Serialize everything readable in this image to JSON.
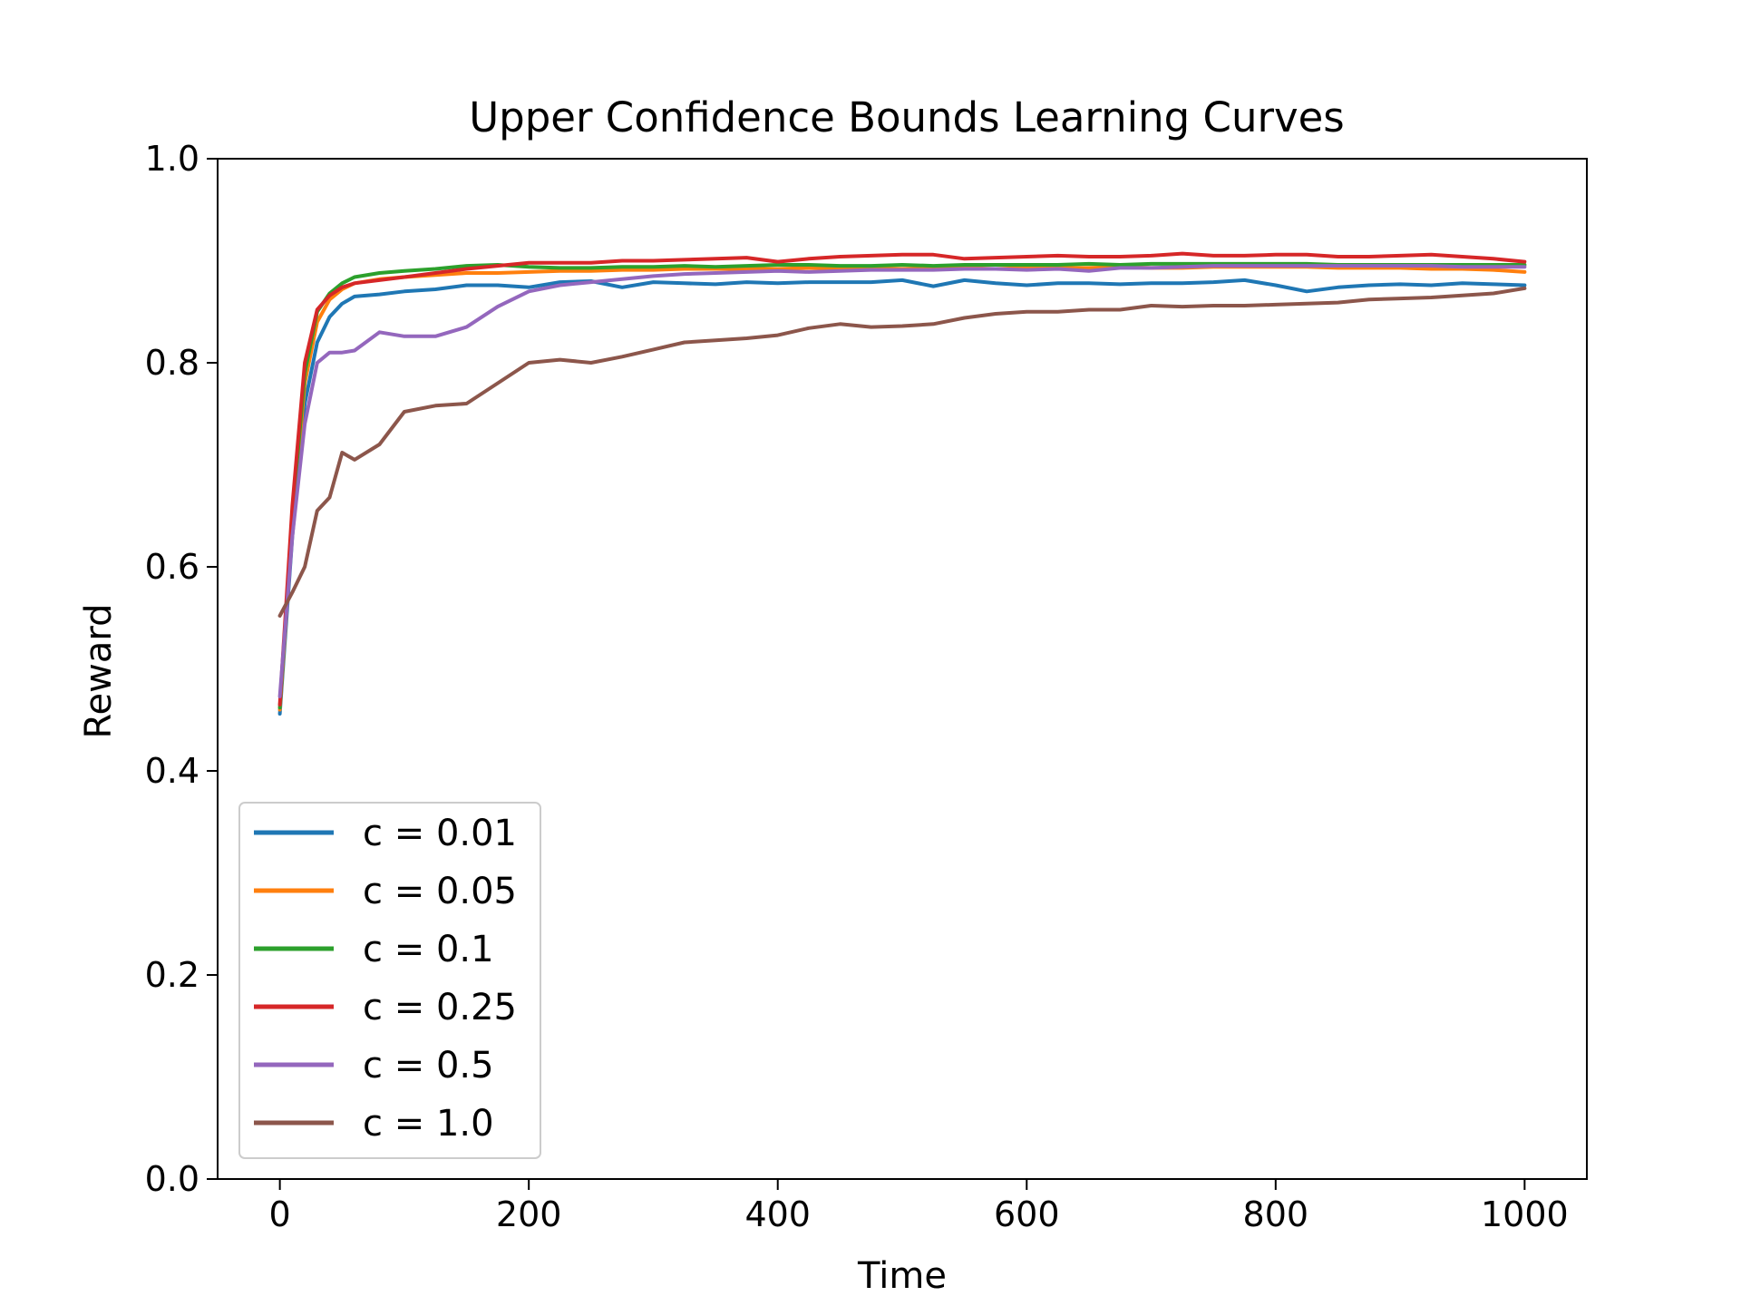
{
  "chart_data": {
    "type": "line",
    "title": "Upper Confidence Bounds Learning Curves",
    "xlabel": "Time",
    "ylabel": "Reward",
    "xlim": [
      -50,
      1050
    ],
    "ylim": [
      0.0,
      1.0
    ],
    "xticks": [
      "0",
      "200",
      "400",
      "600",
      "800",
      "1000"
    ],
    "yticks": [
      "0.0",
      "0.2",
      "0.4",
      "0.6",
      "0.8",
      "1.0"
    ],
    "grid": false,
    "legend_position": "lower left",
    "x": [
      0,
      10,
      20,
      30,
      40,
      50,
      60,
      80,
      100,
      125,
      150,
      175,
      200,
      225,
      250,
      275,
      300,
      325,
      350,
      375,
      400,
      425,
      450,
      475,
      500,
      525,
      550,
      575,
      600,
      625,
      650,
      675,
      700,
      725,
      750,
      775,
      800,
      825,
      850,
      875,
      900,
      925,
      950,
      975,
      1000
    ],
    "series": [
      {
        "name": "c = 0.01",
        "color": "#1f77b4",
        "values": [
          0.456,
          0.63,
          0.76,
          0.82,
          0.845,
          0.858,
          0.865,
          0.867,
          0.87,
          0.872,
          0.876,
          0.876,
          0.874,
          0.879,
          0.88,
          0.874,
          0.879,
          0.878,
          0.877,
          0.879,
          0.878,
          0.879,
          0.879,
          0.879,
          0.881,
          0.875,
          0.881,
          0.878,
          0.876,
          0.878,
          0.878,
          0.877,
          0.878,
          0.878,
          0.879,
          0.881,
          0.876,
          0.87,
          0.874,
          0.876,
          0.877,
          0.876,
          0.878,
          0.877,
          0.876
        ]
      },
      {
        "name": "c = 0.05",
        "color": "#ff7f0e",
        "values": [
          0.46,
          0.64,
          0.78,
          0.84,
          0.862,
          0.872,
          0.878,
          0.882,
          0.884,
          0.886,
          0.888,
          0.888,
          0.889,
          0.89,
          0.89,
          0.891,
          0.891,
          0.892,
          0.892,
          0.892,
          0.892,
          0.893,
          0.892,
          0.893,
          0.892,
          0.893,
          0.893,
          0.892,
          0.893,
          0.893,
          0.893,
          0.894,
          0.893,
          0.893,
          0.894,
          0.894,
          0.894,
          0.894,
          0.893,
          0.893,
          0.893,
          0.892,
          0.892,
          0.891,
          0.889
        ]
      },
      {
        "name": "c = 0.1",
        "color": "#2ca02c",
        "values": [
          0.462,
          0.65,
          0.79,
          0.85,
          0.868,
          0.878,
          0.884,
          0.888,
          0.89,
          0.892,
          0.895,
          0.896,
          0.894,
          0.893,
          0.893,
          0.894,
          0.894,
          0.895,
          0.894,
          0.895,
          0.896,
          0.896,
          0.895,
          0.895,
          0.896,
          0.895,
          0.896,
          0.896,
          0.896,
          0.896,
          0.897,
          0.896,
          0.897,
          0.897,
          0.897,
          0.897,
          0.897,
          0.897,
          0.896,
          0.896,
          0.896,
          0.896,
          0.896,
          0.896,
          0.896
        ]
      },
      {
        "name": "c = 0.25",
        "color": "#d62728",
        "values": [
          0.465,
          0.66,
          0.8,
          0.852,
          0.866,
          0.874,
          0.878,
          0.881,
          0.884,
          0.888,
          0.892,
          0.895,
          0.898,
          0.898,
          0.898,
          0.9,
          0.9,
          0.901,
          0.902,
          0.903,
          0.899,
          0.902,
          0.904,
          0.905,
          0.906,
          0.906,
          0.902,
          0.903,
          0.904,
          0.905,
          0.904,
          0.904,
          0.905,
          0.907,
          0.905,
          0.905,
          0.906,
          0.906,
          0.904,
          0.904,
          0.905,
          0.906,
          0.904,
          0.902,
          0.899
        ]
      },
      {
        "name": "c = 0.5",
        "color": "#9467bd",
        "values": [
          0.473,
          0.63,
          0.74,
          0.8,
          0.81,
          0.81,
          0.812,
          0.83,
          0.826,
          0.826,
          0.835,
          0.855,
          0.87,
          0.876,
          0.879,
          0.882,
          0.885,
          0.887,
          0.888,
          0.889,
          0.89,
          0.889,
          0.89,
          0.891,
          0.891,
          0.891,
          0.892,
          0.892,
          0.891,
          0.892,
          0.89,
          0.893,
          0.893,
          0.894,
          0.895,
          0.895,
          0.895,
          0.895,
          0.895,
          0.895,
          0.895,
          0.895,
          0.894,
          0.894,
          0.894
        ]
      },
      {
        "name": "c = 1.0",
        "color": "#8c564b",
        "values": [
          0.552,
          0.575,
          0.6,
          0.655,
          0.668,
          0.712,
          0.705,
          0.72,
          0.752,
          0.758,
          0.76,
          0.78,
          0.8,
          0.803,
          0.8,
          0.806,
          0.813,
          0.82,
          0.822,
          0.824,
          0.827,
          0.834,
          0.838,
          0.835,
          0.836,
          0.838,
          0.844,
          0.848,
          0.85,
          0.85,
          0.852,
          0.852,
          0.856,
          0.855,
          0.856,
          0.856,
          0.857,
          0.858,
          0.859,
          0.862,
          0.863,
          0.864,
          0.866,
          0.868,
          0.873
        ]
      }
    ]
  }
}
